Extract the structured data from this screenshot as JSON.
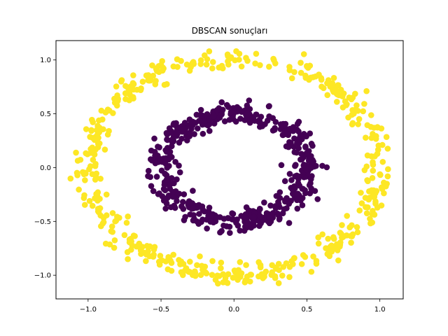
{
  "chart_data": {
    "type": "scatter",
    "title": "DBSCAN sonuçları",
    "xlabel": "",
    "ylabel": "",
    "xlim": [
      -1.22,
      1.16
    ],
    "ylim": [
      -1.22,
      1.18
    ],
    "grid": false,
    "legend": "none",
    "x_ticks": [
      {
        "value": -1.0,
        "label": "−1.0"
      },
      {
        "value": -0.5,
        "label": "−0.5"
      },
      {
        "value": 0.0,
        "label": "0.0"
      },
      {
        "value": 0.5,
        "label": "0.5"
      },
      {
        "value": 1.0,
        "label": "1.0"
      }
    ],
    "y_ticks": [
      {
        "value": 1.0,
        "label": "1.0"
      },
      {
        "value": 0.5,
        "label": "0.5"
      },
      {
        "value": 0.0,
        "label": "0.0"
      },
      {
        "value": -0.5,
        "label": "−0.5"
      },
      {
        "value": -1.0,
        "label": "−1.0"
      }
    ],
    "series": [
      {
        "cluster": 0,
        "color": "#440154",
        "shape": "ring",
        "center": [
          0.0,
          0.0
        ],
        "radius_mean": 0.5,
        "radius_spread": 0.05,
        "point_count": 500
      },
      {
        "cluster": 1,
        "color": "#fde725",
        "shape": "ring",
        "center": [
          0.0,
          0.0
        ],
        "radius_mean": 1.0,
        "radius_spread": 0.05,
        "point_count": 500
      }
    ]
  }
}
